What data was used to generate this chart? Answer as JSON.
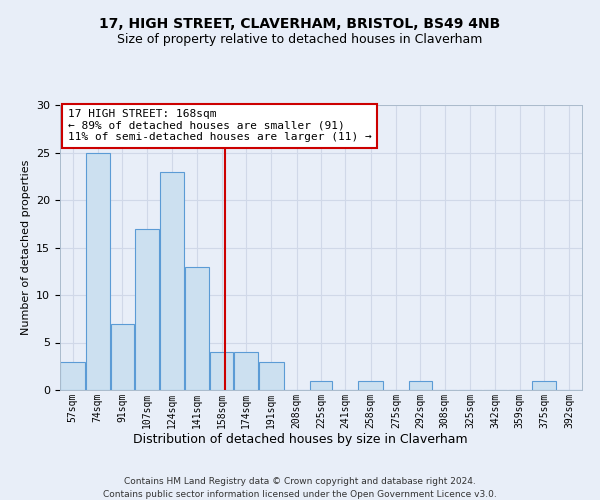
{
  "title1": "17, HIGH STREET, CLAVERHAM, BRISTOL, BS49 4NB",
  "title2": "Size of property relative to detached houses in Claverham",
  "xlabel": "Distribution of detached houses by size in Claverham",
  "ylabel": "Number of detached properties",
  "footer1": "Contains HM Land Registry data © Crown copyright and database right 2024.",
  "footer2": "Contains public sector information licensed under the Open Government Licence v3.0.",
  "annotation_line1": "17 HIGH STREET: 168sqm",
  "annotation_line2": "← 89% of detached houses are smaller (91)",
  "annotation_line3": "11% of semi-detached houses are larger (11) →",
  "bar_color": "#cce0f0",
  "bar_edge_color": "#5b9bd5",
  "categories": [
    "57sqm",
    "74sqm",
    "91sqm",
    "107sqm",
    "124sqm",
    "141sqm",
    "158sqm",
    "174sqm",
    "191sqm",
    "208sqm",
    "225sqm",
    "241sqm",
    "258sqm",
    "275sqm",
    "292sqm",
    "308sqm",
    "325sqm",
    "342sqm",
    "359sqm",
    "375sqm",
    "392sqm"
  ],
  "values": [
    3,
    25,
    7,
    17,
    23,
    13,
    4,
    4,
    3,
    0,
    1,
    0,
    1,
    0,
    1,
    0,
    0,
    0,
    0,
    1,
    0
  ],
  "bin_edges": [
    57,
    74,
    91,
    107,
    124,
    141,
    158,
    174,
    191,
    208,
    225,
    241,
    258,
    275,
    292,
    308,
    325,
    342,
    359,
    375,
    392,
    409
  ],
  "vline_x": 168,
  "vline_color": "#cc0000",
  "ylim": [
    0,
    30
  ],
  "yticks": [
    0,
    5,
    10,
    15,
    20,
    25,
    30
  ],
  "grid_color": "#d0d8e8",
  "annotation_box_color": "#ffffff",
  "annotation_box_edge": "#cc0000",
  "background_color": "#e8eef8",
  "title1_fontsize": 10,
  "title2_fontsize": 9,
  "ylabel_fontsize": 8,
  "xlabel_fontsize": 9,
  "tick_fontsize": 7,
  "footer_fontsize": 6.5,
  "ann_fontsize": 8
}
